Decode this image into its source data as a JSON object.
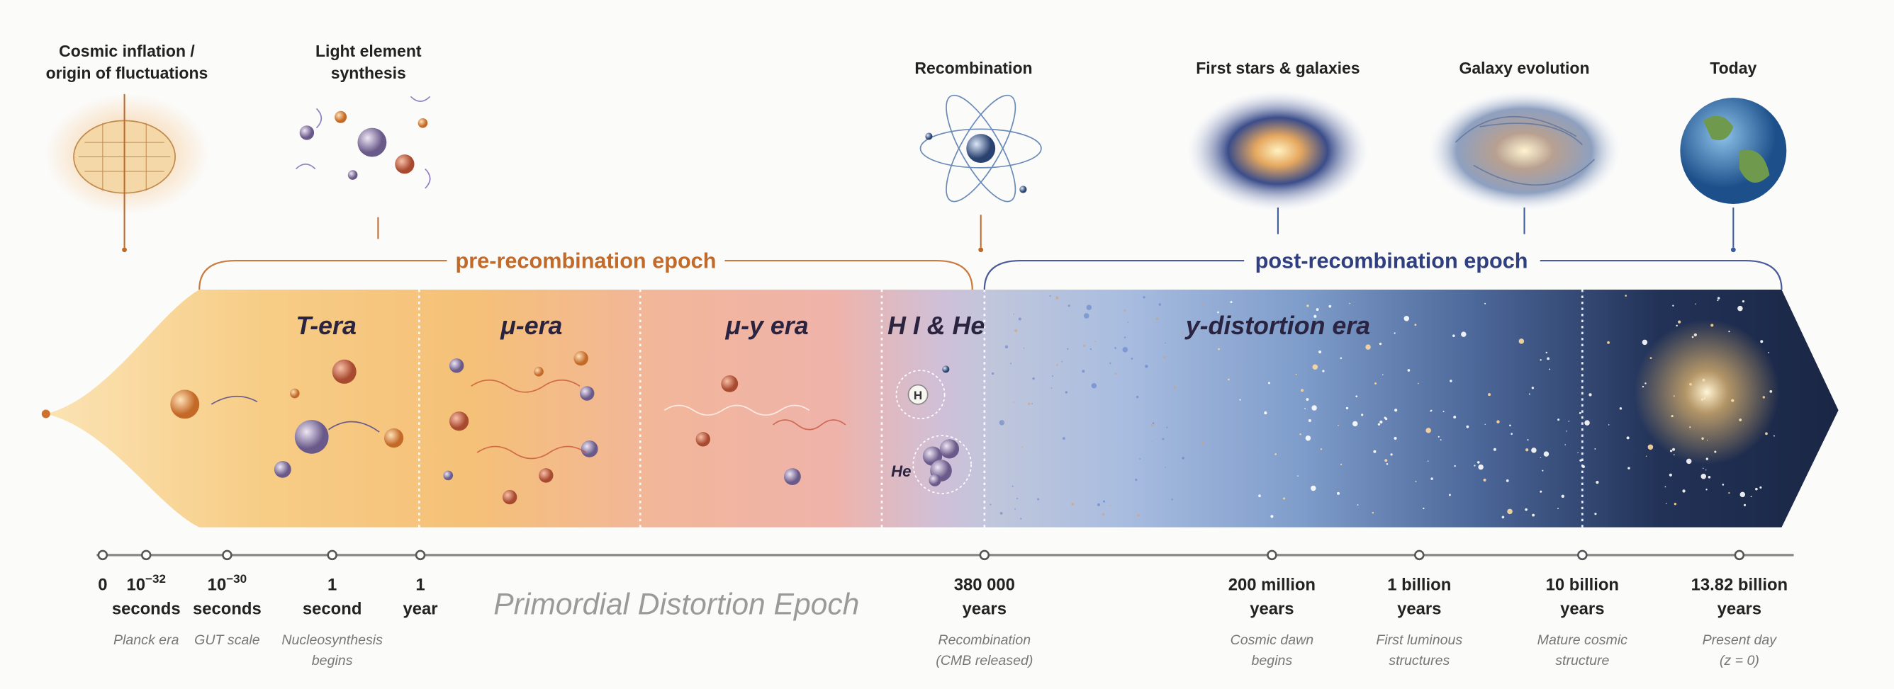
{
  "events": [
    {
      "title": [
        "Cosmic inflation /",
        "origin of fluctuations"
      ]
    },
    {
      "title": [
        "Light element",
        "synthesis"
      ]
    },
    {
      "title": [
        "Recombination"
      ]
    },
    {
      "title": [
        "First stars & galaxies"
      ]
    },
    {
      "title": [
        "Galaxy evolution"
      ]
    },
    {
      "title": [
        "Today"
      ]
    }
  ],
  "epochs": [
    "pre-recombination epoch",
    "post-recombination epoch"
  ],
  "eras": [
    "T-era",
    "μ-era",
    "μ-y era",
    "H I & He",
    "y-distortion era"
  ],
  "atoms": [
    "H",
    "He"
  ],
  "timeline": {
    "title": "Primordial Distortion Epoch",
    "ticks": [
      {
        "lines": [
          "0"
        ]
      },
      {
        "lines": [
          "10",
          "seconds"
        ],
        "exp": "−32",
        "note": [
          "Planck era"
        ]
      },
      {
        "lines": [
          "10",
          "seconds"
        ],
        "exp": "−30",
        "note": [
          "GUT scale"
        ]
      },
      {
        "lines": [
          "1",
          "second"
        ],
        "note": [
          "Nucleosynthesis",
          "begins"
        ]
      },
      {
        "lines": [
          "1",
          "year"
        ]
      },
      {
        "lines": [
          "380 000",
          "years"
        ],
        "note": [
          "Recombination",
          "(CMB released)"
        ]
      },
      {
        "lines": [
          "200 million",
          "years"
        ],
        "note": [
          "Cosmic dawn",
          "begins"
        ]
      },
      {
        "lines": [
          "1 billion",
          "years"
        ],
        "note": [
          "First luminous",
          "structures"
        ]
      },
      {
        "lines": [
          "10 billion",
          "years"
        ],
        "note": [
          "Mature cosmic",
          "structure"
        ]
      },
      {
        "lines": [
          "13.82 billion",
          "years"
        ],
        "note": [
          "Present day",
          "(z = 0)"
        ]
      }
    ]
  }
}
